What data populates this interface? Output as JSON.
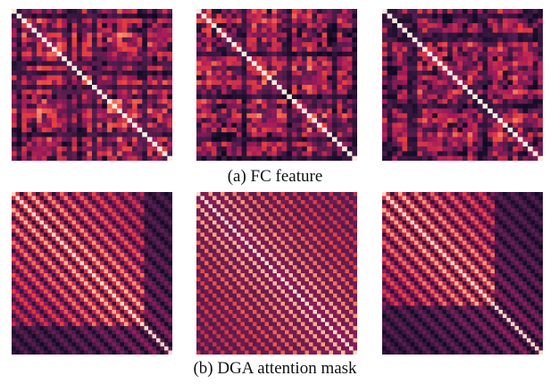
{
  "figure": {
    "caption_a": "(a) FC feature",
    "caption_b": "(b) DGA attention mask"
  },
  "colormap": [
    "#03051a",
    "#4c1d4b",
    "#a11a5b",
    "#e83f3f",
    "#f69c73",
    "#faebdd"
  ],
  "chart_data": [
    {
      "type": "heatmap",
      "group": "a",
      "rows": 32,
      "cols": 32,
      "pattern": "random-symmetric",
      "seed": 11,
      "unit_diagonal": true
    },
    {
      "type": "heatmap",
      "group": "a",
      "rows": 32,
      "cols": 32,
      "pattern": "random-symmetric",
      "seed": 23,
      "unit_diagonal": true
    },
    {
      "type": "heatmap",
      "group": "a",
      "rows": 32,
      "cols": 32,
      "pattern": "random-symmetric",
      "seed": 37,
      "unit_diagonal": true
    },
    {
      "type": "heatmap",
      "group": "b",
      "rows": 40,
      "cols": 40,
      "pattern": "periodic-smooth",
      "period": 4,
      "seed": 5,
      "bright_block_end": 0.82
    },
    {
      "type": "heatmap",
      "group": "b",
      "rows": 40,
      "cols": 40,
      "pattern": "periodic-smooth",
      "period": 3,
      "seed": 9,
      "bright_block_end": 1.0
    },
    {
      "type": "heatmap",
      "group": "b",
      "rows": 40,
      "cols": 40,
      "pattern": "periodic-smooth",
      "period": 4,
      "seed": 17,
      "bright_block_end": 0.7
    }
  ]
}
